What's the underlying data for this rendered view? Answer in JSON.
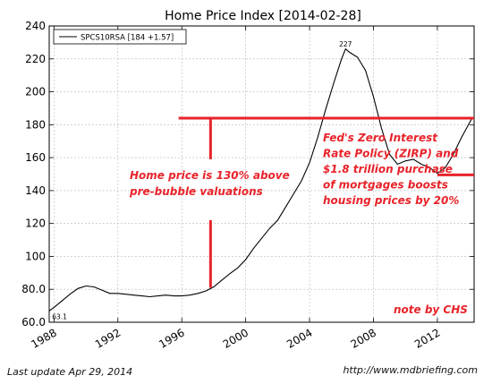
{
  "chart_data": {
    "type": "line",
    "title": "Home Price Index  [2014-02-28]",
    "xlabel": "",
    "ylabel": "",
    "xlim": [
      1987.7,
      2014.3
    ],
    "ylim": [
      60,
      240
    ],
    "grid": true,
    "x_ticks": [
      1988,
      1992,
      1996,
      2000,
      2004,
      2008,
      2012
    ],
    "x_tick_labels": [
      "1988",
      "1992",
      "1996",
      "2000",
      "2004",
      "2008",
      "2012"
    ],
    "y_ticks": [
      60,
      80,
      100,
      120,
      140,
      160,
      180,
      200,
      220,
      240
    ],
    "y_tick_labels": [
      "60.0",
      "80.0",
      "100",
      "120",
      "140",
      "160",
      "180",
      "200",
      "220",
      "240"
    ],
    "legend": {
      "placement": "top-left",
      "label": "SPCS10RSA [184 +1.57]"
    },
    "series": [
      {
        "name": "SPCS10RSA [184 +1.57]",
        "color": "#000000",
        "points": [
          [
            1987.0,
            62.0
          ],
          [
            1987.5,
            65.5
          ],
          [
            1988.0,
            69.0
          ],
          [
            1988.5,
            73.0
          ],
          [
            1989.0,
            77.0
          ],
          [
            1989.5,
            80.5
          ],
          [
            1990.0,
            82.0
          ],
          [
            1990.5,
            81.5
          ],
          [
            1991.0,
            79.5
          ],
          [
            1991.5,
            77.5
          ],
          [
            1992.0,
            77.5
          ],
          [
            1992.5,
            77.0
          ],
          [
            1993.0,
            76.5
          ],
          [
            1993.5,
            76.0
          ],
          [
            1994.0,
            75.5
          ],
          [
            1994.5,
            76.0
          ],
          [
            1995.0,
            76.5
          ],
          [
            1995.5,
            76.0
          ],
          [
            1996.0,
            76.0
          ],
          [
            1996.5,
            76.5
          ],
          [
            1997.0,
            77.5
          ],
          [
            1997.5,
            79.0
          ],
          [
            1998.0,
            81.5
          ],
          [
            1998.5,
            85.5
          ],
          [
            1999.0,
            89.5
          ],
          [
            1999.5,
            93.0
          ],
          [
            2000.0,
            98.0
          ],
          [
            2000.5,
            105.0
          ],
          [
            2001.0,
            111.0
          ],
          [
            2001.5,
            117.0
          ],
          [
            2002.0,
            122.0
          ],
          [
            2002.5,
            130.0
          ],
          [
            2003.0,
            138.0
          ],
          [
            2003.5,
            146.0
          ],
          [
            2004.0,
            157.0
          ],
          [
            2004.5,
            172.0
          ],
          [
            2005.0,
            189.0
          ],
          [
            2005.5,
            205.0
          ],
          [
            2006.0,
            220.0
          ],
          [
            2006.25,
            226.0
          ],
          [
            2006.5,
            224.0
          ],
          [
            2007.0,
            221.0
          ],
          [
            2007.5,
            213.0
          ],
          [
            2008.0,
            197.0
          ],
          [
            2008.5,
            178.0
          ],
          [
            2009.0,
            162.0
          ],
          [
            2009.5,
            156.0
          ],
          [
            2010.0,
            158.0
          ],
          [
            2010.5,
            159.0
          ],
          [
            2011.0,
            156.0
          ],
          [
            2011.5,
            154.0
          ],
          [
            2012.0,
            150.5
          ],
          [
            2012.5,
            154.0
          ],
          [
            2013.0,
            162.0
          ],
          [
            2013.5,
            172.0
          ],
          [
            2014.17,
            184.0
          ]
        ]
      }
    ],
    "annotations": [
      {
        "text": "227",
        "x": 2006.25,
        "y": 227
      },
      {
        "text": "63.1",
        "x": 1987.9,
        "y": 63.1
      }
    ],
    "overlay": {
      "color": "#e8232a",
      "lines": [
        {
          "kind": "horizontal",
          "y": 184,
          "x0": 1995.8,
          "x1": 2014.3
        },
        {
          "kind": "horizontal",
          "y": 149.5,
          "x0": 2012.0,
          "x1": 2014.3
        },
        {
          "kind": "vertical",
          "x": 1997.8,
          "y0": 159,
          "y1": 184
        },
        {
          "kind": "vertical",
          "x": 1997.8,
          "y0": 81,
          "y1": 122
        }
      ],
      "notes": [
        {
          "lines": [
            "Home price is 130% above",
            "pre-bubble valuations"
          ]
        },
        {
          "lines": [
            "Fed's Zero Interest",
            "Rate Policy (ZIRP) and",
            "$1.8 trillion purchase",
            "of mortgages boosts",
            "housing prices by 20%"
          ]
        },
        {
          "lines": [
            "note by CHS"
          ]
        }
      ]
    }
  },
  "footer": {
    "left": "Last update Apr 29, 2014",
    "right": "http://www.mdbriefing.com"
  }
}
